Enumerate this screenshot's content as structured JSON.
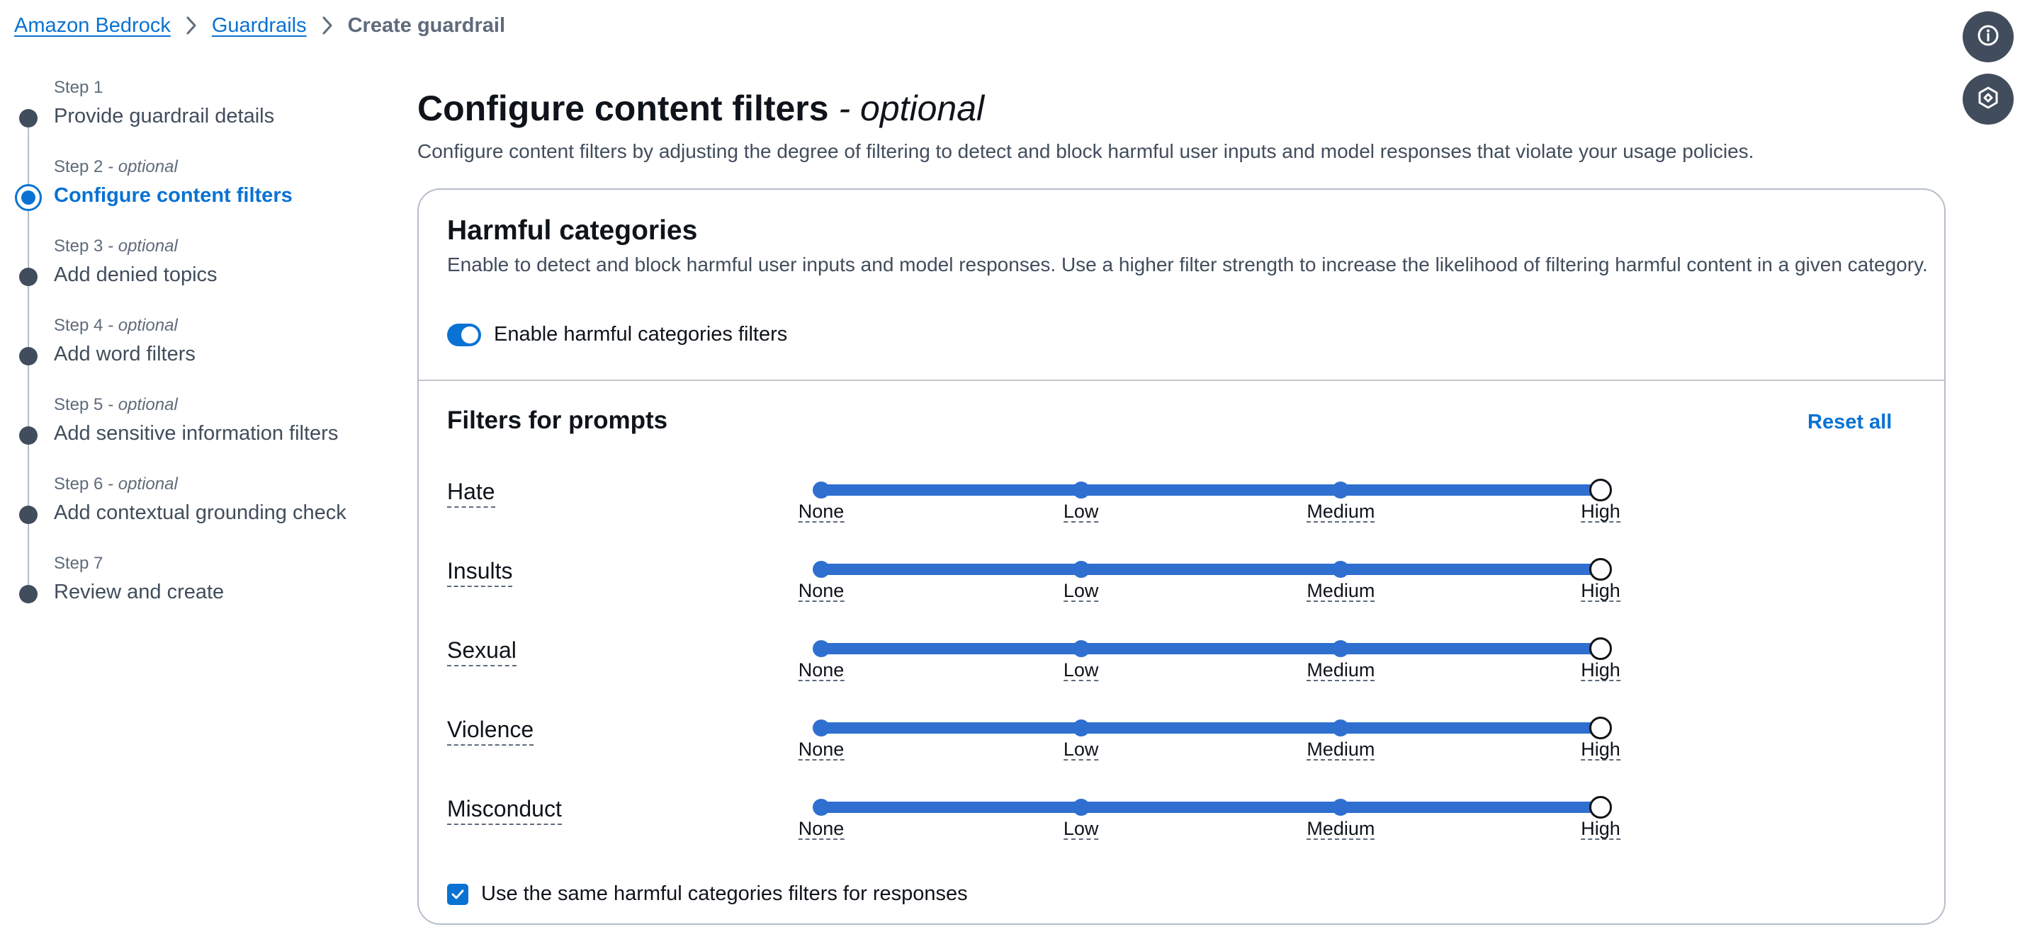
{
  "breadcrumb": {
    "items": [
      "Amazon Bedrock",
      "Guardrails"
    ],
    "current": "Create guardrail"
  },
  "float_buttons": [
    "info-icon",
    "bedrock-icon"
  ],
  "steps": [
    {
      "number": "Step 1",
      "optional": "",
      "title": "Provide guardrail details"
    },
    {
      "number": "Step 2",
      "optional": " - optional",
      "title": "Configure content filters"
    },
    {
      "number": "Step 3",
      "optional": " - optional",
      "title": "Add denied topics"
    },
    {
      "number": "Step 4",
      "optional": " - optional",
      "title": "Add word filters"
    },
    {
      "number": "Step 5",
      "optional": " - optional",
      "title": "Add sensitive information filters"
    },
    {
      "number": "Step 6",
      "optional": " - optional",
      "title": "Add contextual grounding check"
    },
    {
      "number": "Step 7",
      "optional": "",
      "title": "Review and create"
    }
  ],
  "active_step": 2,
  "page": {
    "title": "Configure content filters",
    "title_suffix": " - optional",
    "description": "Configure content filters by adjusting the degree of filtering to detect and block harmful user inputs and model responses that violate your usage policies."
  },
  "harmful_categories": {
    "title": "Harmful categories",
    "description": "Enable to detect and block harmful user inputs and model responses. Use a higher filter strength to increase the likelihood of filtering harmful content in a given category.",
    "toggle_label": "Enable harmful categories filters",
    "toggle_on": true
  },
  "filters": {
    "title": "Filters for prompts",
    "reset_label": "Reset all",
    "levels": [
      "None",
      "Low",
      "Medium",
      "High"
    ],
    "rows": [
      {
        "label": "Hate",
        "value": "High"
      },
      {
        "label": "Insults",
        "value": "High"
      },
      {
        "label": "Sexual",
        "value": "High"
      },
      {
        "label": "Violence",
        "value": "High"
      },
      {
        "label": "Misconduct",
        "value": "High"
      }
    ]
  },
  "same_for_responses": {
    "label": "Use the same harmful categories filters for responses",
    "checked": true
  },
  "colors": {
    "link": "#0972d3",
    "slider": "#2f6fcf",
    "dark_button": "#414d5c"
  }
}
